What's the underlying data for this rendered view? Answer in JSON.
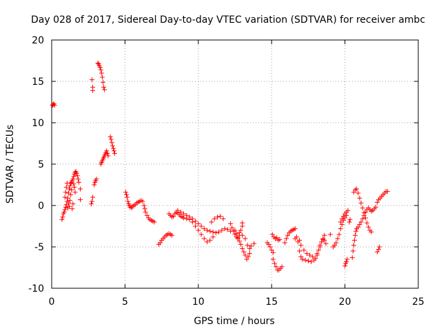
{
  "chart_data": {
    "type": "scatter",
    "title": "Day 028 of 2017, Sidereal Day-to-day VTEC variation (SDTVAR) for receiver ambc",
    "xlabel": "GPS time / hours",
    "ylabel": "SDTVAR / TECUs",
    "xlim": [
      0,
      25
    ],
    "ylim": [
      -10,
      20
    ],
    "xticks": [
      0,
      5,
      10,
      15,
      20,
      25
    ],
    "yticks": [
      -10,
      -5,
      0,
      5,
      10,
      15,
      20
    ],
    "xtick_labels": [
      "0",
      "5",
      "10",
      "15",
      "20",
      "25"
    ],
    "ytick_labels": [
      "-10",
      "-5",
      "0",
      "5",
      "10",
      "15",
      "20"
    ],
    "grid": true,
    "marker": "+",
    "color": "#ff0000",
    "series": [
      {
        "name": "SDTVAR",
        "points": [
          [
            0.05,
            12.1
          ],
          [
            0.1,
            12.2
          ],
          [
            0.15,
            12.3
          ],
          [
            0.2,
            12.1
          ],
          [
            0.7,
            -1.7
          ],
          [
            0.75,
            -1.4
          ],
          [
            0.8,
            -1.0
          ],
          [
            0.85,
            -0.8
          ],
          [
            0.9,
            -0.5
          ],
          [
            0.95,
            -0.2
          ],
          [
            1.0,
            0.1
          ],
          [
            1.05,
            0.5
          ],
          [
            1.1,
            0.9
          ],
          [
            1.15,
            1.5
          ],
          [
            1.2,
            2.0
          ],
          [
            1.25,
            2.4
          ],
          [
            1.3,
            2.7
          ],
          [
            1.35,
            2.8
          ],
          [
            1.4,
            3.0
          ],
          [
            0.9,
            1.0
          ],
          [
            0.95,
            1.6
          ],
          [
            1.0,
            2.2
          ],
          [
            1.05,
            2.7
          ],
          [
            1.1,
            -0.3
          ],
          [
            1.15,
            0.3
          ],
          [
            1.2,
            -0.1
          ],
          [
            1.25,
            0.6
          ],
          [
            1.3,
            1.3
          ],
          [
            1.35,
            1.9
          ],
          [
            1.4,
            -0.4
          ],
          [
            1.45,
            0.2
          ],
          [
            1.45,
            3.2
          ],
          [
            1.5,
            3.5
          ],
          [
            1.55,
            3.8
          ],
          [
            1.6,
            4.0
          ],
          [
            1.65,
            4.1
          ],
          [
            1.7,
            3.9
          ],
          [
            1.75,
            3.6
          ],
          [
            1.8,
            3.2
          ],
          [
            1.85,
            2.8
          ],
          [
            1.5,
            2.6
          ],
          [
            1.55,
            2.2
          ],
          [
            1.6,
            1.6
          ],
          [
            1.95,
            2.0
          ],
          [
            1.95,
            0.7
          ],
          [
            2.7,
            0.2
          ],
          [
            2.75,
            0.5
          ],
          [
            2.8,
            1.0
          ],
          [
            2.75,
            15.2
          ],
          [
            2.8,
            14.3
          ],
          [
            2.8,
            13.9
          ],
          [
            2.9,
            2.5
          ],
          [
            2.95,
            2.8
          ],
          [
            3.0,
            3.0
          ],
          [
            3.05,
            3.2
          ],
          [
            3.15,
            17.2
          ],
          [
            3.2,
            17.1
          ],
          [
            3.25,
            16.9
          ],
          [
            3.3,
            16.7
          ],
          [
            3.35,
            16.4
          ],
          [
            3.4,
            16.0
          ],
          [
            3.45,
            15.5
          ],
          [
            3.5,
            14.9
          ],
          [
            3.55,
            14.3
          ],
          [
            3.6,
            14.0
          ],
          [
            3.35,
            5.0
          ],
          [
            3.4,
            5.2
          ],
          [
            3.45,
            5.4
          ],
          [
            3.5,
            5.6
          ],
          [
            3.55,
            5.8
          ],
          [
            3.6,
            6.0
          ],
          [
            3.65,
            6.2
          ],
          [
            3.7,
            6.4
          ],
          [
            3.75,
            6.6
          ],
          [
            3.8,
            6.3
          ],
          [
            3.85,
            6.0
          ],
          [
            4.0,
            8.3
          ],
          [
            4.05,
            8.0
          ],
          [
            4.1,
            7.6
          ],
          [
            4.15,
            7.2
          ],
          [
            4.2,
            6.9
          ],
          [
            4.25,
            6.6
          ],
          [
            4.3,
            6.3
          ],
          [
            5.05,
            1.6
          ],
          [
            5.1,
            1.3
          ],
          [
            5.15,
            1.0
          ],
          [
            5.2,
            0.5
          ],
          [
            5.25,
            0.2
          ],
          [
            5.3,
            0.0
          ],
          [
            5.35,
            -0.2
          ],
          [
            5.45,
            -0.3
          ],
          [
            5.5,
            -0.1
          ],
          [
            5.6,
            0.0
          ],
          [
            5.7,
            0.1
          ],
          [
            5.8,
            0.3
          ],
          [
            5.9,
            0.4
          ],
          [
            6.0,
            0.5
          ],
          [
            6.1,
            0.6
          ],
          [
            6.2,
            0.5
          ],
          [
            6.3,
            0.0
          ],
          [
            6.35,
            -0.4
          ],
          [
            6.4,
            -0.8
          ],
          [
            6.5,
            -1.2
          ],
          [
            6.6,
            -1.5
          ],
          [
            6.7,
            -1.7
          ],
          [
            6.8,
            -1.8
          ],
          [
            6.9,
            -1.9
          ],
          [
            7.0,
            -2.0
          ],
          [
            7.3,
            -4.7
          ],
          [
            7.4,
            -4.5
          ],
          [
            7.5,
            -4.2
          ],
          [
            7.6,
            -4.0
          ],
          [
            7.7,
            -3.8
          ],
          [
            7.8,
            -3.6
          ],
          [
            7.9,
            -3.5
          ],
          [
            8.0,
            -3.4
          ],
          [
            8.1,
            -3.5
          ],
          [
            8.2,
            -3.6
          ],
          [
            8.0,
            -1.0
          ],
          [
            8.1,
            -1.2
          ],
          [
            8.2,
            -1.4
          ],
          [
            8.3,
            -1.3
          ],
          [
            8.4,
            -1.0
          ],
          [
            8.5,
            -0.8
          ],
          [
            8.6,
            -0.9
          ],
          [
            8.7,
            -1.1
          ],
          [
            8.8,
            -1.3
          ],
          [
            8.9,
            -1.4
          ],
          [
            9.0,
            -1.5
          ],
          [
            9.2,
            -1.6
          ],
          [
            9.4,
            -1.7
          ],
          [
            9.6,
            -2.0
          ],
          [
            9.8,
            -2.5
          ],
          [
            10.0,
            -3.0
          ],
          [
            10.2,
            -3.5
          ],
          [
            10.4,
            -4.0
          ],
          [
            10.6,
            -4.4
          ],
          [
            10.8,
            -4.2
          ],
          [
            11.0,
            -3.8
          ],
          [
            8.6,
            -0.6
          ],
          [
            8.8,
            -0.8
          ],
          [
            9.0,
            -1.0
          ],
          [
            9.2,
            -1.2
          ],
          [
            9.4,
            -1.4
          ],
          [
            9.6,
            -1.6
          ],
          [
            9.8,
            -1.9
          ],
          [
            10.0,
            -2.2
          ],
          [
            10.2,
            -2.5
          ],
          [
            10.4,
            -2.8
          ],
          [
            10.6,
            -3.0
          ],
          [
            10.8,
            -3.1
          ],
          [
            11.0,
            -3.2
          ],
          [
            11.2,
            -3.3
          ],
          [
            11.4,
            -3.2
          ],
          [
            11.6,
            -3.0
          ],
          [
            11.8,
            -2.8
          ],
          [
            12.0,
            -2.9
          ],
          [
            12.2,
            -3.1
          ],
          [
            10.9,
            -2.0
          ],
          [
            11.1,
            -1.6
          ],
          [
            11.3,
            -1.4
          ],
          [
            11.5,
            -1.3
          ],
          [
            11.7,
            -1.6
          ],
          [
            12.2,
            -2.2
          ],
          [
            12.3,
            -2.7
          ],
          [
            12.4,
            -3.1
          ],
          [
            12.5,
            -3.5
          ],
          [
            12.6,
            -3.8
          ],
          [
            12.7,
            -4.0
          ],
          [
            12.8,
            -3.6
          ],
          [
            12.9,
            -3.0
          ],
          [
            13.0,
            -2.5
          ],
          [
            13.0,
            -2.1
          ],
          [
            12.5,
            -3.0
          ],
          [
            12.6,
            -3.4
          ],
          [
            12.7,
            -3.9
          ],
          [
            12.8,
            -4.3
          ],
          [
            12.9,
            -4.7
          ],
          [
            13.0,
            -5.2
          ],
          [
            13.1,
            -5.6
          ],
          [
            13.2,
            -6.0
          ],
          [
            13.3,
            -6.5
          ],
          [
            13.4,
            -6.2
          ],
          [
            13.5,
            -5.8
          ],
          [
            12.8,
            -3.3
          ],
          [
            13.0,
            -3.6
          ],
          [
            13.2,
            -4.0
          ],
          [
            13.35,
            -4.8
          ],
          [
            13.5,
            -5.2
          ],
          [
            13.6,
            -4.9
          ],
          [
            13.8,
            -4.6
          ],
          [
            14.7,
            -4.5
          ],
          [
            14.8,
            -4.7
          ],
          [
            14.9,
            -5.0
          ],
          [
            15.0,
            -5.4
          ],
          [
            15.1,
            -5.7
          ],
          [
            15.05,
            -3.5
          ],
          [
            15.15,
            -3.8
          ],
          [
            15.25,
            -4.0
          ],
          [
            15.35,
            -3.9
          ],
          [
            15.45,
            -4.2
          ],
          [
            15.55,
            -4.1
          ],
          [
            15.1,
            -6.5
          ],
          [
            15.2,
            -7.0
          ],
          [
            15.3,
            -7.4
          ],
          [
            15.4,
            -7.8
          ],
          [
            15.5,
            -7.8
          ],
          [
            15.6,
            -7.6
          ],
          [
            15.7,
            -7.4
          ],
          [
            15.9,
            -4.5
          ],
          [
            16.0,
            -4.0
          ],
          [
            16.1,
            -3.6
          ],
          [
            16.2,
            -3.3
          ],
          [
            16.3,
            -3.1
          ],
          [
            16.4,
            -3.0
          ],
          [
            16.5,
            -2.9
          ],
          [
            16.6,
            -2.8
          ],
          [
            16.6,
            -4.0
          ],
          [
            16.8,
            -4.4
          ],
          [
            16.9,
            -5.5
          ],
          [
            17.0,
            -6.2
          ],
          [
            17.1,
            -6.5
          ],
          [
            17.3,
            -6.6
          ],
          [
            17.5,
            -6.7
          ],
          [
            17.7,
            -6.8
          ],
          [
            17.9,
            -6.6
          ],
          [
            18.1,
            -6.0
          ],
          [
            18.3,
            -5.0
          ],
          [
            18.5,
            -4.0
          ],
          [
            16.7,
            -3.8
          ],
          [
            16.9,
            -4.2
          ],
          [
            17.0,
            -4.8
          ],
          [
            17.2,
            -5.4
          ],
          [
            17.4,
            -5.8
          ],
          [
            17.6,
            -6.0
          ],
          [
            17.8,
            -6.2
          ],
          [
            18.0,
            -6.4
          ],
          [
            18.1,
            -5.8
          ],
          [
            18.2,
            -5.4
          ],
          [
            18.3,
            -4.8
          ],
          [
            18.4,
            -4.4
          ],
          [
            18.5,
            -4.1
          ],
          [
            18.6,
            -4.2
          ],
          [
            18.7,
            -4.6
          ],
          [
            18.6,
            -3.6
          ],
          [
            19.0,
            -3.5
          ],
          [
            19.2,
            -5.0
          ],
          [
            19.3,
            -4.8
          ],
          [
            19.4,
            -4.5
          ],
          [
            19.5,
            -4.0
          ],
          [
            19.6,
            -3.5
          ],
          [
            19.7,
            -2.8
          ],
          [
            19.8,
            -2.3
          ],
          [
            19.9,
            -1.8
          ],
          [
            20.0,
            -1.5
          ],
          [
            20.1,
            -1.2
          ],
          [
            19.7,
            -2.0
          ],
          [
            19.8,
            -1.6
          ],
          [
            19.9,
            -1.3
          ],
          [
            20.0,
            -1.0
          ],
          [
            20.1,
            -0.8
          ],
          [
            20.2,
            -0.6
          ],
          [
            20.0,
            -7.3
          ],
          [
            20.05,
            -7.0
          ],
          [
            20.1,
            -6.8
          ],
          [
            20.15,
            -6.5
          ],
          [
            20.3,
            -2.0
          ],
          [
            20.35,
            -1.7
          ],
          [
            20.5,
            -6.3
          ],
          [
            20.55,
            -5.5
          ],
          [
            20.6,
            -4.8
          ],
          [
            20.65,
            -4.2
          ],
          [
            20.7,
            -3.6
          ],
          [
            20.75,
            -3.1
          ],
          [
            20.8,
            -2.8
          ],
          [
            20.9,
            -2.6
          ],
          [
            21.0,
            -2.3
          ],
          [
            21.1,
            -2.0
          ],
          [
            21.2,
            -1.6
          ],
          [
            21.3,
            -1.2
          ],
          [
            21.4,
            -0.8
          ],
          [
            21.5,
            -0.5
          ],
          [
            20.6,
            1.6
          ],
          [
            20.7,
            1.9
          ],
          [
            20.8,
            2.0
          ],
          [
            20.9,
            1.5
          ],
          [
            21.0,
            0.9
          ],
          [
            21.1,
            0.3
          ],
          [
            21.2,
            -0.3
          ],
          [
            21.3,
            -0.9
          ],
          [
            21.4,
            -1.5
          ],
          [
            21.5,
            -2.1
          ],
          [
            21.6,
            -2.6
          ],
          [
            21.7,
            -3.0
          ],
          [
            21.8,
            -3.2
          ],
          [
            21.6,
            -0.3
          ],
          [
            21.7,
            -0.5
          ],
          [
            21.8,
            -0.7
          ],
          [
            21.9,
            -0.6
          ],
          [
            22.0,
            -0.4
          ],
          [
            22.1,
            -0.2
          ],
          [
            22.2,
            -5.6
          ],
          [
            22.3,
            -5.3
          ],
          [
            22.35,
            -5.0
          ],
          [
            22.2,
            0.4
          ],
          [
            22.3,
            0.7
          ],
          [
            22.4,
            0.9
          ],
          [
            22.5,
            1.1
          ],
          [
            22.6,
            1.3
          ],
          [
            22.7,
            1.5
          ],
          [
            22.8,
            1.7
          ],
          [
            22.9,
            1.7
          ]
        ]
      }
    ]
  }
}
